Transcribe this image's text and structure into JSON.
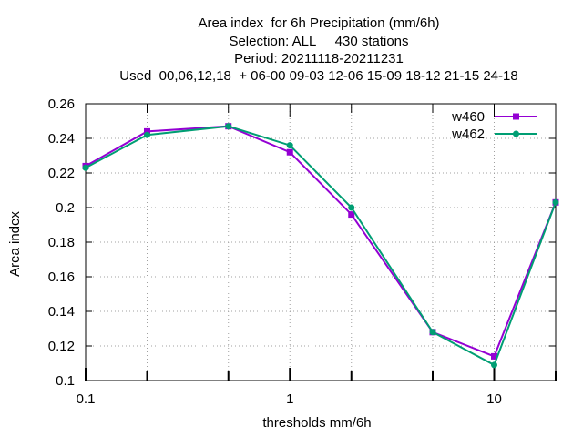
{
  "chart_data": {
    "type": "line",
    "title_lines": [
      "Area index  for 6h Precipitation (mm/6h)",
      "Selection: ALL     430 stations",
      "Period: 20211118-20211231",
      "Used  00,06,12,18  + 06-00 09-03 12-06 15-09 18-12 21-15 24-18"
    ],
    "xlabel": "thresholds mm/6h",
    "ylabel": "Area index",
    "x_scale": "log",
    "xlim": [
      0.1,
      20
    ],
    "ylim": [
      0.1,
      0.26
    ],
    "x_ticks": [
      0.1,
      0.2,
      0.5,
      1,
      2,
      5,
      10,
      20
    ],
    "x_tick_labels": [
      "0.1",
      "",
      "",
      "1",
      "",
      "",
      "10",
      ""
    ],
    "y_ticks": [
      0.1,
      0.12,
      0.14,
      0.16,
      0.18,
      0.2,
      0.22,
      0.24,
      0.26
    ],
    "y_tick_labels": [
      "0.1",
      "0.12",
      "0.14",
      "0.16",
      "0.18",
      "0.2",
      "0.22",
      "0.24",
      "0.26"
    ],
    "grid": true,
    "legend_position": "top-right",
    "x": [
      0.1,
      0.2,
      0.5,
      1,
      2,
      5,
      10,
      20
    ],
    "series": [
      {
        "name": "w460",
        "color": "#9400d3",
        "values": [
          0.224,
          0.244,
          0.247,
          0.232,
          0.196,
          0.128,
          0.114,
          0.203
        ]
      },
      {
        "name": "w462",
        "color": "#009e73",
        "values": [
          0.223,
          0.242,
          0.247,
          0.236,
          0.2,
          0.128,
          0.109,
          0.203
        ]
      }
    ]
  }
}
